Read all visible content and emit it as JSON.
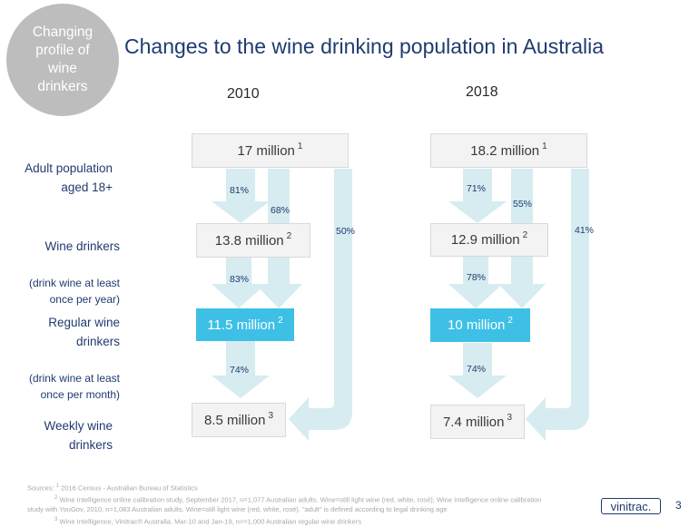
{
  "badge": {
    "text": "Changing\nprofile of\nwine\ndrinkers"
  },
  "title": "Changes to the wine drinking population in Australia",
  "years": {
    "left": "2010",
    "right": "2018"
  },
  "row_labels": {
    "adult": {
      "main": "Adult population\naged 18+"
    },
    "wine": {
      "main": "Wine drinkers",
      "sub": "(drink wine at least\nonce per year)"
    },
    "regular": {
      "main": "Regular wine\ndrinkers",
      "sub": "(drink wine at least\nonce per month)"
    },
    "weekly": {
      "main": "Weekly wine\ndrinkers"
    }
  },
  "col2010": {
    "adult": {
      "value": "17 million",
      "ref": "1"
    },
    "wine": {
      "value": "13.8 million",
      "ref": "2"
    },
    "regular": {
      "value": "11.5 million",
      "ref": "2"
    },
    "weekly": {
      "value": "8.5 million",
      "ref": "3"
    },
    "pct_adult_wine": "81%",
    "pct_adult_regular": "68%",
    "pct_adult_weekly": "50%",
    "pct_wine_regular": "83%",
    "pct_regular_weekly": "74%"
  },
  "col2018": {
    "adult": {
      "value": "18.2 million",
      "ref": "1"
    },
    "wine": {
      "value": "12.9 million",
      "ref": "2"
    },
    "regular": {
      "value": "10 million",
      "ref": "2"
    },
    "weekly": {
      "value": "7.4 million",
      "ref": "3"
    },
    "pct_adult_wine": "71%",
    "pct_adult_regular": "55%",
    "pct_adult_weekly": "41%",
    "pct_wine_regular": "78%",
    "pct_regular_weekly": "74%"
  },
  "sources": {
    "label": "Sources:",
    "s1_num": "1",
    "s1": "2016 Census - Australian Bureau of Statistics",
    "s2_num": "2",
    "s2": "Wine Intelligence online calibration study, September 2017, n=1,077 Australian adults. Wine=still light wine (red, white, rosé); Wine Intelligence online calibration study with YouGov, 2010, n=1,083 Australian adults. Wine=still light wine (red, white, rosé). \"adult\" is defined according to legal drinking age",
    "s3_num": "3",
    "s3": "Wine Intelligence, Vinitrac® Australia, Mar-10 and Jan-19, n>=1,000 Australian regular wine drinkers"
  },
  "logo": "vinitrac.",
  "page_number": "3",
  "colors": {
    "navy": "#1f3b70",
    "highlight": "#3ec0e6",
    "arrow": "#d6ecf0",
    "badge": "#bdbdbd"
  }
}
